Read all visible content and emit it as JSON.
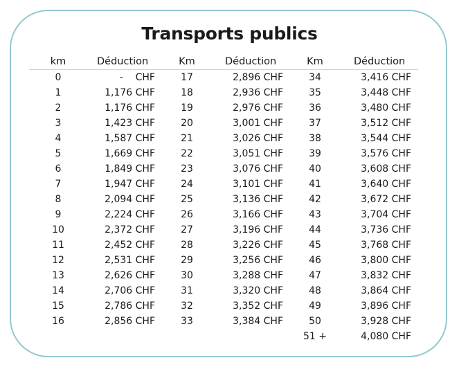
{
  "title": "Transports publics",
  "headers": [
    "km",
    "Déduction",
    "Km",
    "Déduction",
    "Km",
    "Déduction"
  ],
  "columns": [
    {
      "rows": [
        {
          "km": "0",
          "deduction": "-    CHF"
        },
        {
          "km": "1",
          "deduction": "1,176 CHF"
        },
        {
          "km": "2",
          "deduction": "1,176 CHF"
        },
        {
          "km": "3",
          "deduction": "1,423 CHF"
        },
        {
          "km": "4",
          "deduction": "1,587 CHF"
        },
        {
          "km": "5",
          "deduction": "1,669 CHF"
        },
        {
          "km": "6",
          "deduction": "1,849 CHF"
        },
        {
          "km": "7",
          "deduction": "1,947 CHF"
        },
        {
          "km": "8",
          "deduction": "2,094 CHF"
        },
        {
          "km": "9",
          "deduction": "2,224 CHF"
        },
        {
          "km": "10",
          "deduction": "2,372 CHF"
        },
        {
          "km": "11",
          "deduction": "2,452 CHF"
        },
        {
          "km": "12",
          "deduction": "2,531 CHF"
        },
        {
          "km": "13",
          "deduction": "2,626 CHF"
        },
        {
          "km": "14",
          "deduction": "2,706 CHF"
        },
        {
          "km": "15",
          "deduction": "2,786 CHF"
        },
        {
          "km": "16",
          "deduction": "2,856 CHF"
        }
      ]
    },
    {
      "rows": [
        {
          "km": "17",
          "deduction": "2,896 CHF"
        },
        {
          "km": "18",
          "deduction": "2,936 CHF"
        },
        {
          "km": "19",
          "deduction": "2,976 CHF"
        },
        {
          "km": "20",
          "deduction": "3,001 CHF"
        },
        {
          "km": "21",
          "deduction": "3,026 CHF"
        },
        {
          "km": "22",
          "deduction": "3,051 CHF"
        },
        {
          "km": "23",
          "deduction": "3,076 CHF"
        },
        {
          "km": "24",
          "deduction": "3,101 CHF"
        },
        {
          "km": "25",
          "deduction": "3,136 CHF"
        },
        {
          "km": "26",
          "deduction": "3,166 CHF"
        },
        {
          "km": "27",
          "deduction": "3,196 CHF"
        },
        {
          "km": "28",
          "deduction": "3,226 CHF"
        },
        {
          "km": "29",
          "deduction": "3,256 CHF"
        },
        {
          "km": "30",
          "deduction": "3,288 CHF"
        },
        {
          "km": "31",
          "deduction": "3,320 CHF"
        },
        {
          "km": "32",
          "deduction": "3,352 CHF"
        },
        {
          "km": "33",
          "deduction": "3,384 CHF"
        }
      ]
    },
    {
      "rows": [
        {
          "km": "34",
          "deduction": "3,416 CHF"
        },
        {
          "km": "35",
          "deduction": "3,448 CHF"
        },
        {
          "km": "36",
          "deduction": "3,480 CHF"
        },
        {
          "km": "37",
          "deduction": "3,512 CHF"
        },
        {
          "km": "38",
          "deduction": "3,544 CHF"
        },
        {
          "km": "39",
          "deduction": "3,576 CHF"
        },
        {
          "km": "40",
          "deduction": "3,608 CHF"
        },
        {
          "km": "41",
          "deduction": "3,640 CHF"
        },
        {
          "km": "42",
          "deduction": "3,672 CHF"
        },
        {
          "km": "43",
          "deduction": "3,704 CHF"
        },
        {
          "km": "44",
          "deduction": "3,736 CHF"
        },
        {
          "km": "45",
          "deduction": "3,768 CHF"
        },
        {
          "km": "46",
          "deduction": "3,800 CHF"
        },
        {
          "km": "47",
          "deduction": "3,832 CHF"
        },
        {
          "km": "48",
          "deduction": "3,864 CHF"
        },
        {
          "km": "49",
          "deduction": "3,896 CHF"
        },
        {
          "km": "50",
          "deduction": "3,928 CHF"
        },
        {
          "km": "51 +",
          "deduction": "4,080 CHF"
        }
      ]
    }
  ],
  "colors": {
    "border": "#92c9d1",
    "header_rule": "#b9dde2",
    "text": "#1a1a1a"
  }
}
